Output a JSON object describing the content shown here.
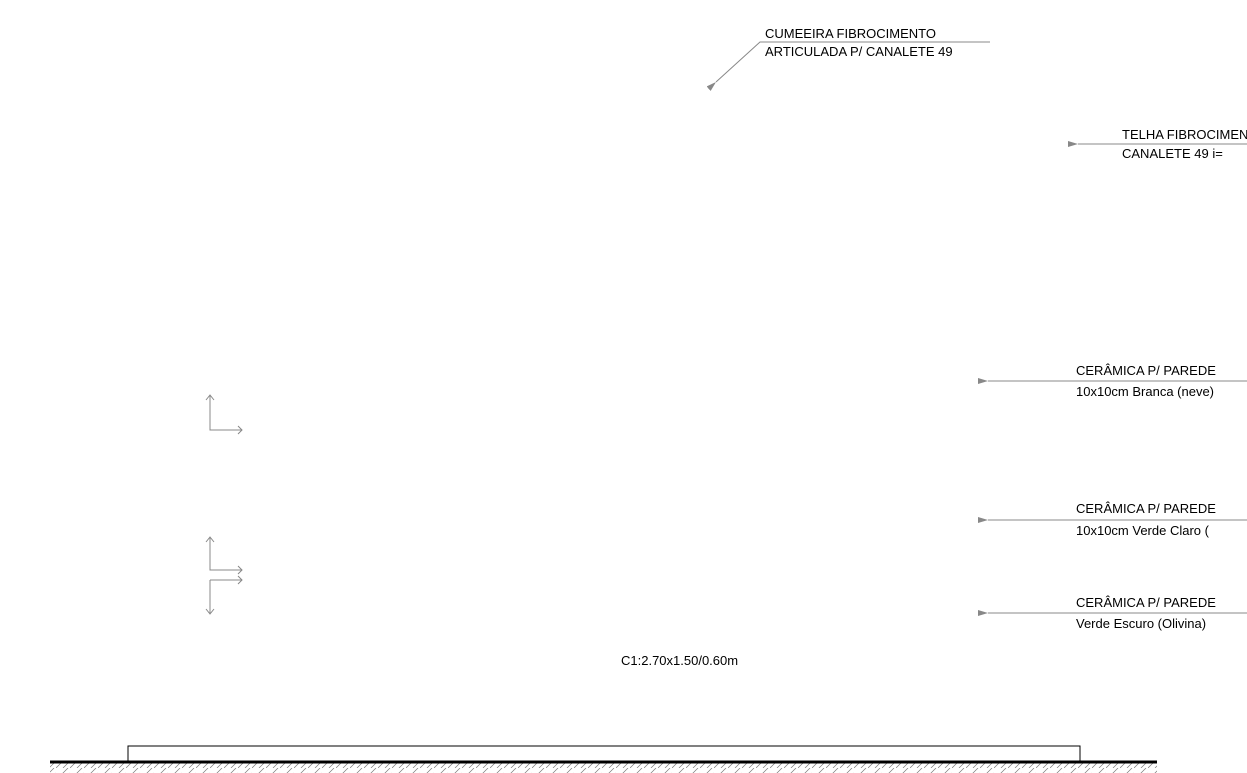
{
  "labels": {
    "ridge": [
      "CUMEEIRA FIBROCIMENTO",
      "ARTICULADA P/ CANALETE 49"
    ],
    "roof": [
      "TELHA FIBROCIMEN",
      "CANALETE 49   i="
    ],
    "tile_white": [
      "CERÂMICA P/ PAREDE",
      "10x10cm Branca (neve)"
    ],
    "tile_light": [
      "CERÂMICA P/ PAREDE",
      "10x10cm Verde Claro ("
    ],
    "tile_dark": [
      "CERÂMICA P/ PAREDE",
      "Verde Escuro (Olivina)"
    ],
    "window": "C1:2.70x1.50/0.60m"
  }
}
